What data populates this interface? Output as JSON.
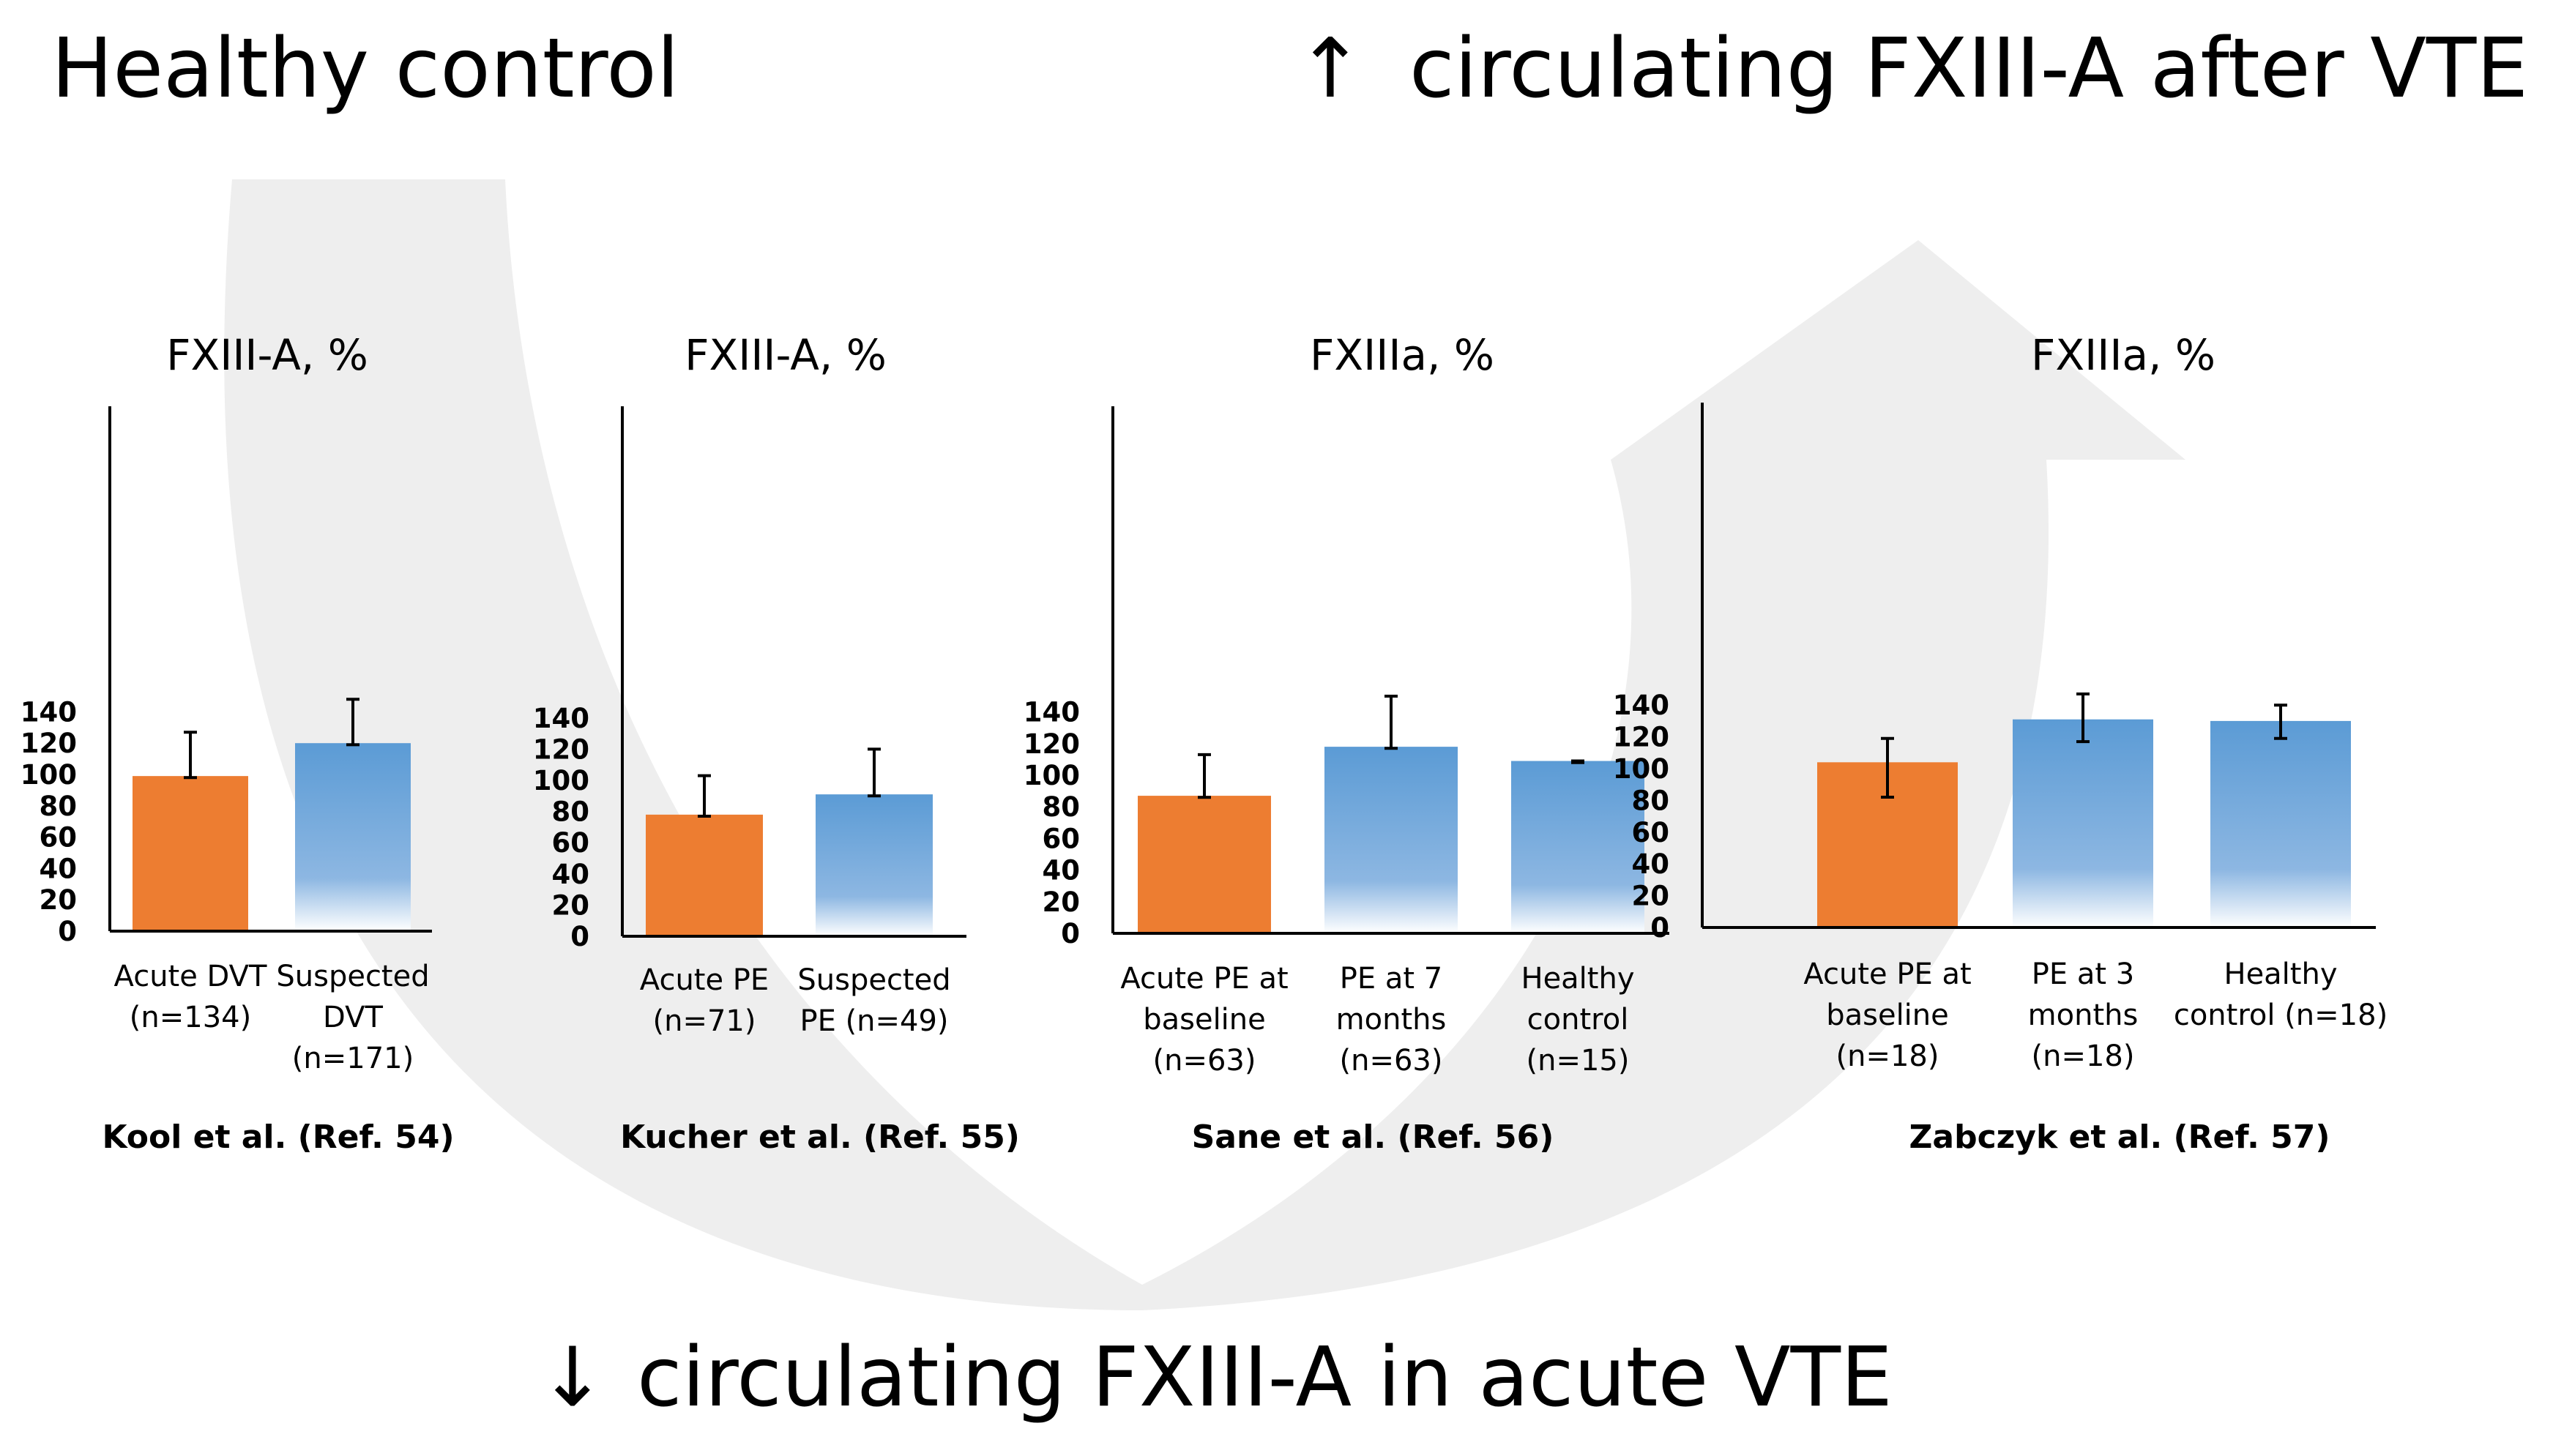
{
  "header": {
    "healthy_control": "Healthy control",
    "up_arrow": "↑",
    "up_text": "circulating FXIII-A after VTE",
    "down_arrow": "↓",
    "down_text": "circulating FXIII-A in acute VTE"
  },
  "colors": {
    "orange": "#ED7D31",
    "blue_top": "#5B9BD5",
    "blue_bottom": "#FFFFFF",
    "cycle_arrow": "#EEEEEE"
  },
  "chart_data": [
    {
      "type": "bar",
      "title": "FXIII-A, %",
      "ylim": [
        0,
        150
      ],
      "yticks": [
        0,
        20,
        40,
        60,
        80,
        100,
        120,
        140
      ],
      "categories": [
        [
          "Acute DVT",
          "(n=134)"
        ],
        [
          "Suspected",
          "DVT",
          "(n=171)"
        ]
      ],
      "values": [
        99,
        120
      ],
      "error_upper": [
        127,
        148
      ],
      "error_lower": [
        98,
        119
      ],
      "styles": [
        "orange",
        "blue_gradient"
      ],
      "reference": "Kool et al. (Ref. 54)"
    },
    {
      "type": "bar",
      "title": "FXIII-A, %",
      "ylim": [
        0,
        150
      ],
      "yticks": [
        0,
        20,
        40,
        60,
        80,
        100,
        120,
        140
      ],
      "categories": [
        [
          "Acute PE",
          "(n=71)"
        ],
        [
          "Suspected",
          "PE (n=49)"
        ]
      ],
      "values": [
        78,
        91
      ],
      "error_upper": [
        103,
        120
      ],
      "error_lower": [
        77,
        90
      ],
      "styles": [
        "orange",
        "blue_gradient"
      ],
      "reference": "Kucher et al. (Ref. 55)"
    },
    {
      "type": "bar",
      "title": "FXIIIa, %",
      "ylim": [
        0,
        150
      ],
      "yticks": [
        0,
        20,
        40,
        60,
        80,
        100,
        120,
        140
      ],
      "categories": [
        [
          "Acute PE at",
          "baseline",
          "(n=63)"
        ],
        [
          "PE at 7",
          "months",
          "(n=63)"
        ],
        [
          "Healthy",
          "control",
          "(n=15)"
        ]
      ],
      "values": [
        87,
        118,
        109
      ],
      "error_upper": [
        113,
        150,
        109
      ],
      "error_lower": [
        86,
        117,
        108
      ],
      "styles": [
        "orange",
        "blue_gradient",
        "blue_gradient"
      ],
      "reference": "Sane et al. (Ref. 56)"
    },
    {
      "type": "bar",
      "title": "FXIIIa, %",
      "ylim": [
        0,
        150
      ],
      "yticks": [
        0,
        20,
        40,
        60,
        80,
        100,
        120,
        140
      ],
      "categories": [
        [
          "Acute PE at",
          "baseline",
          "(n=18)"
        ],
        [
          "PE at 3",
          "months",
          "(n=18)"
        ],
        [
          "Healthy",
          "control (n=18)"
        ]
      ],
      "values": [
        104,
        131,
        130
      ],
      "error_upper": [
        119,
        147,
        140
      ],
      "error_lower": [
        82,
        117,
        119
      ],
      "styles": [
        "orange",
        "blue_gradient",
        "blue_gradient"
      ],
      "reference": "Zabczyk et al. (Ref. 57)"
    }
  ]
}
